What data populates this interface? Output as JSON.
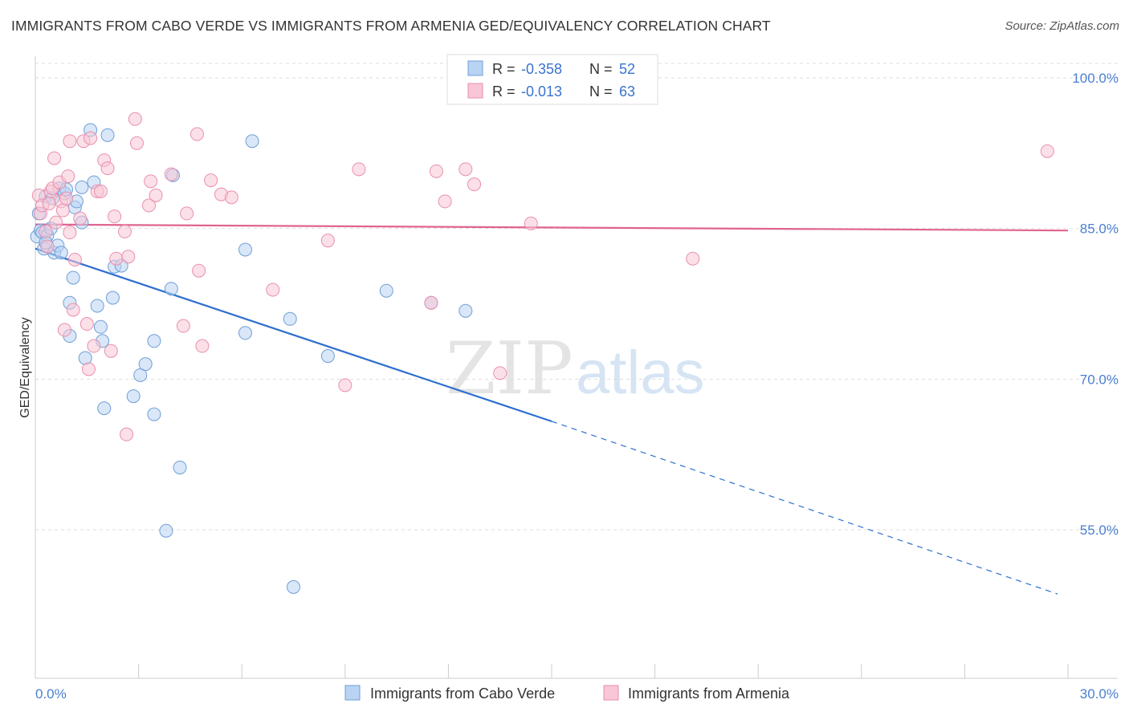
{
  "title": "IMMIGRANTS FROM CABO VERDE VS IMMIGRANTS FROM ARMENIA GED/EQUIVALENCY CORRELATION CHART",
  "source": "Source: ZipAtlas.com",
  "watermark": {
    "zip": "ZIP",
    "atlas": "atlas"
  },
  "colors": {
    "blue_fill": "#b9d3f3",
    "blue_stroke": "#6f9fd8",
    "blue_line": "#2f6fd0",
    "pink_fill": "#f8c6d6",
    "pink_stroke": "#e98fae",
    "pink_line": "#e0648e",
    "tick_label": "#4a7fd0",
    "grid": "#dddddd"
  },
  "legend": {
    "rows": [
      {
        "r_label": "R = ",
        "r_value": "-0.358",
        "n_label": "N = ",
        "n_value": "52"
      },
      {
        "r_label": "R = ",
        "r_value": "-0.013",
        "n_label": "N = ",
        "n_value": "63"
      }
    ]
  },
  "chart_data": {
    "type": "scatter",
    "title": "IMMIGRANTS FROM CABO VERDE VS IMMIGRANTS FROM ARMENIA GED/EQUIVALENCY CORRELATION CHART",
    "xlabel": "",
    "ylabel": "GED/Equivalency",
    "xlim": [
      0,
      30
    ],
    "ylim": [
      40,
      102
    ],
    "x_tick_labels": [
      "0.0%",
      "30.0%"
    ],
    "y_ticks": [
      100,
      85,
      70,
      55
    ],
    "y_tick_labels": [
      "100.0%",
      "85.0%",
      "70.0%",
      "55.0%"
    ],
    "grid": true,
    "legend_position": "top-center",
    "series": [
      {
        "name": "Immigrants from Cabo Verde",
        "color": "blue",
        "points": [
          [
            0.05,
            84.2
          ],
          [
            0.1,
            86.5
          ],
          [
            0.15,
            84.8
          ],
          [
            0.2,
            84.6
          ],
          [
            0.25,
            83.0
          ],
          [
            0.3,
            88.2
          ],
          [
            0.35,
            84.3
          ],
          [
            0.45,
            85.0
          ],
          [
            0.5,
            88.0
          ],
          [
            0.55,
            82.6
          ],
          [
            0.65,
            83.3
          ],
          [
            0.7,
            89.0
          ],
          [
            0.75,
            82.6
          ],
          [
            0.85,
            88.5
          ],
          [
            0.9,
            88.9
          ],
          [
            1.0,
            74.3
          ],
          [
            1.0,
            77.6
          ],
          [
            1.1,
            80.1
          ],
          [
            1.15,
            87.1
          ],
          [
            1.2,
            87.7
          ],
          [
            1.35,
            89.1
          ],
          [
            1.35,
            85.6
          ],
          [
            1.45,
            72.1
          ],
          [
            1.6,
            94.8
          ],
          [
            1.7,
            89.6
          ],
          [
            1.8,
            77.3
          ],
          [
            1.9,
            75.2
          ],
          [
            1.95,
            73.8
          ],
          [
            2.0,
            67.1
          ],
          [
            2.1,
            94.3
          ],
          [
            2.25,
            78.1
          ],
          [
            2.3,
            81.2
          ],
          [
            2.5,
            81.3
          ],
          [
            2.85,
            68.3
          ],
          [
            3.05,
            70.4
          ],
          [
            3.2,
            71.5
          ],
          [
            3.45,
            66.5
          ],
          [
            3.45,
            73.8
          ],
          [
            3.8,
            54.9
          ],
          [
            3.95,
            79.0
          ],
          [
            4.0,
            90.3
          ],
          [
            4.2,
            61.2
          ],
          [
            6.1,
            82.9
          ],
          [
            6.1,
            74.6
          ],
          [
            6.3,
            93.7
          ],
          [
            7.4,
            76.0
          ],
          [
            7.5,
            49.3
          ],
          [
            8.5,
            72.3
          ],
          [
            10.2,
            78.8
          ],
          [
            11.5,
            77.6
          ],
          [
            12.5,
            76.8
          ],
          [
            0.3,
            83.6
          ]
        ]
      },
      {
        "name": "Immigrants from Armenia",
        "color": "pink",
        "points": [
          [
            0.1,
            88.3
          ],
          [
            0.15,
            86.5
          ],
          [
            0.2,
            87.3
          ],
          [
            0.3,
            84.7
          ],
          [
            0.35,
            83.2
          ],
          [
            0.4,
            87.5
          ],
          [
            0.45,
            88.7
          ],
          [
            0.5,
            89.0
          ],
          [
            0.55,
            92.0
          ],
          [
            0.6,
            85.6
          ],
          [
            0.7,
            89.6
          ],
          [
            0.75,
            87.7
          ],
          [
            0.8,
            86.8
          ],
          [
            0.85,
            74.9
          ],
          [
            0.9,
            88.0
          ],
          [
            0.95,
            90.2
          ],
          [
            1.0,
            84.6
          ],
          [
            1.0,
            93.7
          ],
          [
            1.1,
            76.9
          ],
          [
            1.15,
            81.9
          ],
          [
            1.3,
            86.0
          ],
          [
            1.4,
            93.7
          ],
          [
            1.5,
            75.5
          ],
          [
            1.55,
            71.0
          ],
          [
            1.6,
            94.0
          ],
          [
            1.7,
            73.3
          ],
          [
            1.8,
            88.7
          ],
          [
            1.9,
            88.7
          ],
          [
            2.0,
            91.8
          ],
          [
            2.1,
            91.0
          ],
          [
            2.2,
            72.8
          ],
          [
            2.3,
            86.2
          ],
          [
            2.35,
            82.0
          ],
          [
            2.6,
            84.7
          ],
          [
            2.65,
            64.5
          ],
          [
            2.7,
            82.2
          ],
          [
            2.9,
            95.9
          ],
          [
            2.95,
            93.5
          ],
          [
            3.3,
            87.3
          ],
          [
            3.35,
            89.7
          ],
          [
            3.5,
            88.3
          ],
          [
            3.95,
            90.4
          ],
          [
            4.3,
            75.3
          ],
          [
            4.4,
            86.5
          ],
          [
            4.7,
            94.4
          ],
          [
            4.75,
            80.8
          ],
          [
            4.85,
            73.3
          ],
          [
            5.1,
            89.8
          ],
          [
            5.4,
            88.4
          ],
          [
            5.7,
            88.1
          ],
          [
            6.9,
            78.9
          ],
          [
            8.5,
            83.8
          ],
          [
            9.0,
            69.4
          ],
          [
            9.4,
            90.9
          ],
          [
            11.5,
            77.6
          ],
          [
            11.65,
            90.7
          ],
          [
            11.9,
            87.7
          ],
          [
            12.5,
            90.9
          ],
          [
            12.75,
            89.4
          ],
          [
            13.5,
            70.6
          ],
          [
            14.4,
            85.5
          ],
          [
            19.1,
            82.0
          ],
          [
            29.4,
            92.7
          ]
        ]
      }
    ],
    "trend_lines": [
      {
        "series": "Immigrants from Cabo Verde",
        "x": [
          0,
          15
        ],
        "y": [
          83.0,
          65.8
        ],
        "dashed_extension_to_x": 29.7,
        "dashed_y": 48.6
      },
      {
        "series": "Immigrants from Armenia",
        "x": [
          0,
          30
        ],
        "y": [
          85.4,
          84.8
        ]
      }
    ]
  }
}
